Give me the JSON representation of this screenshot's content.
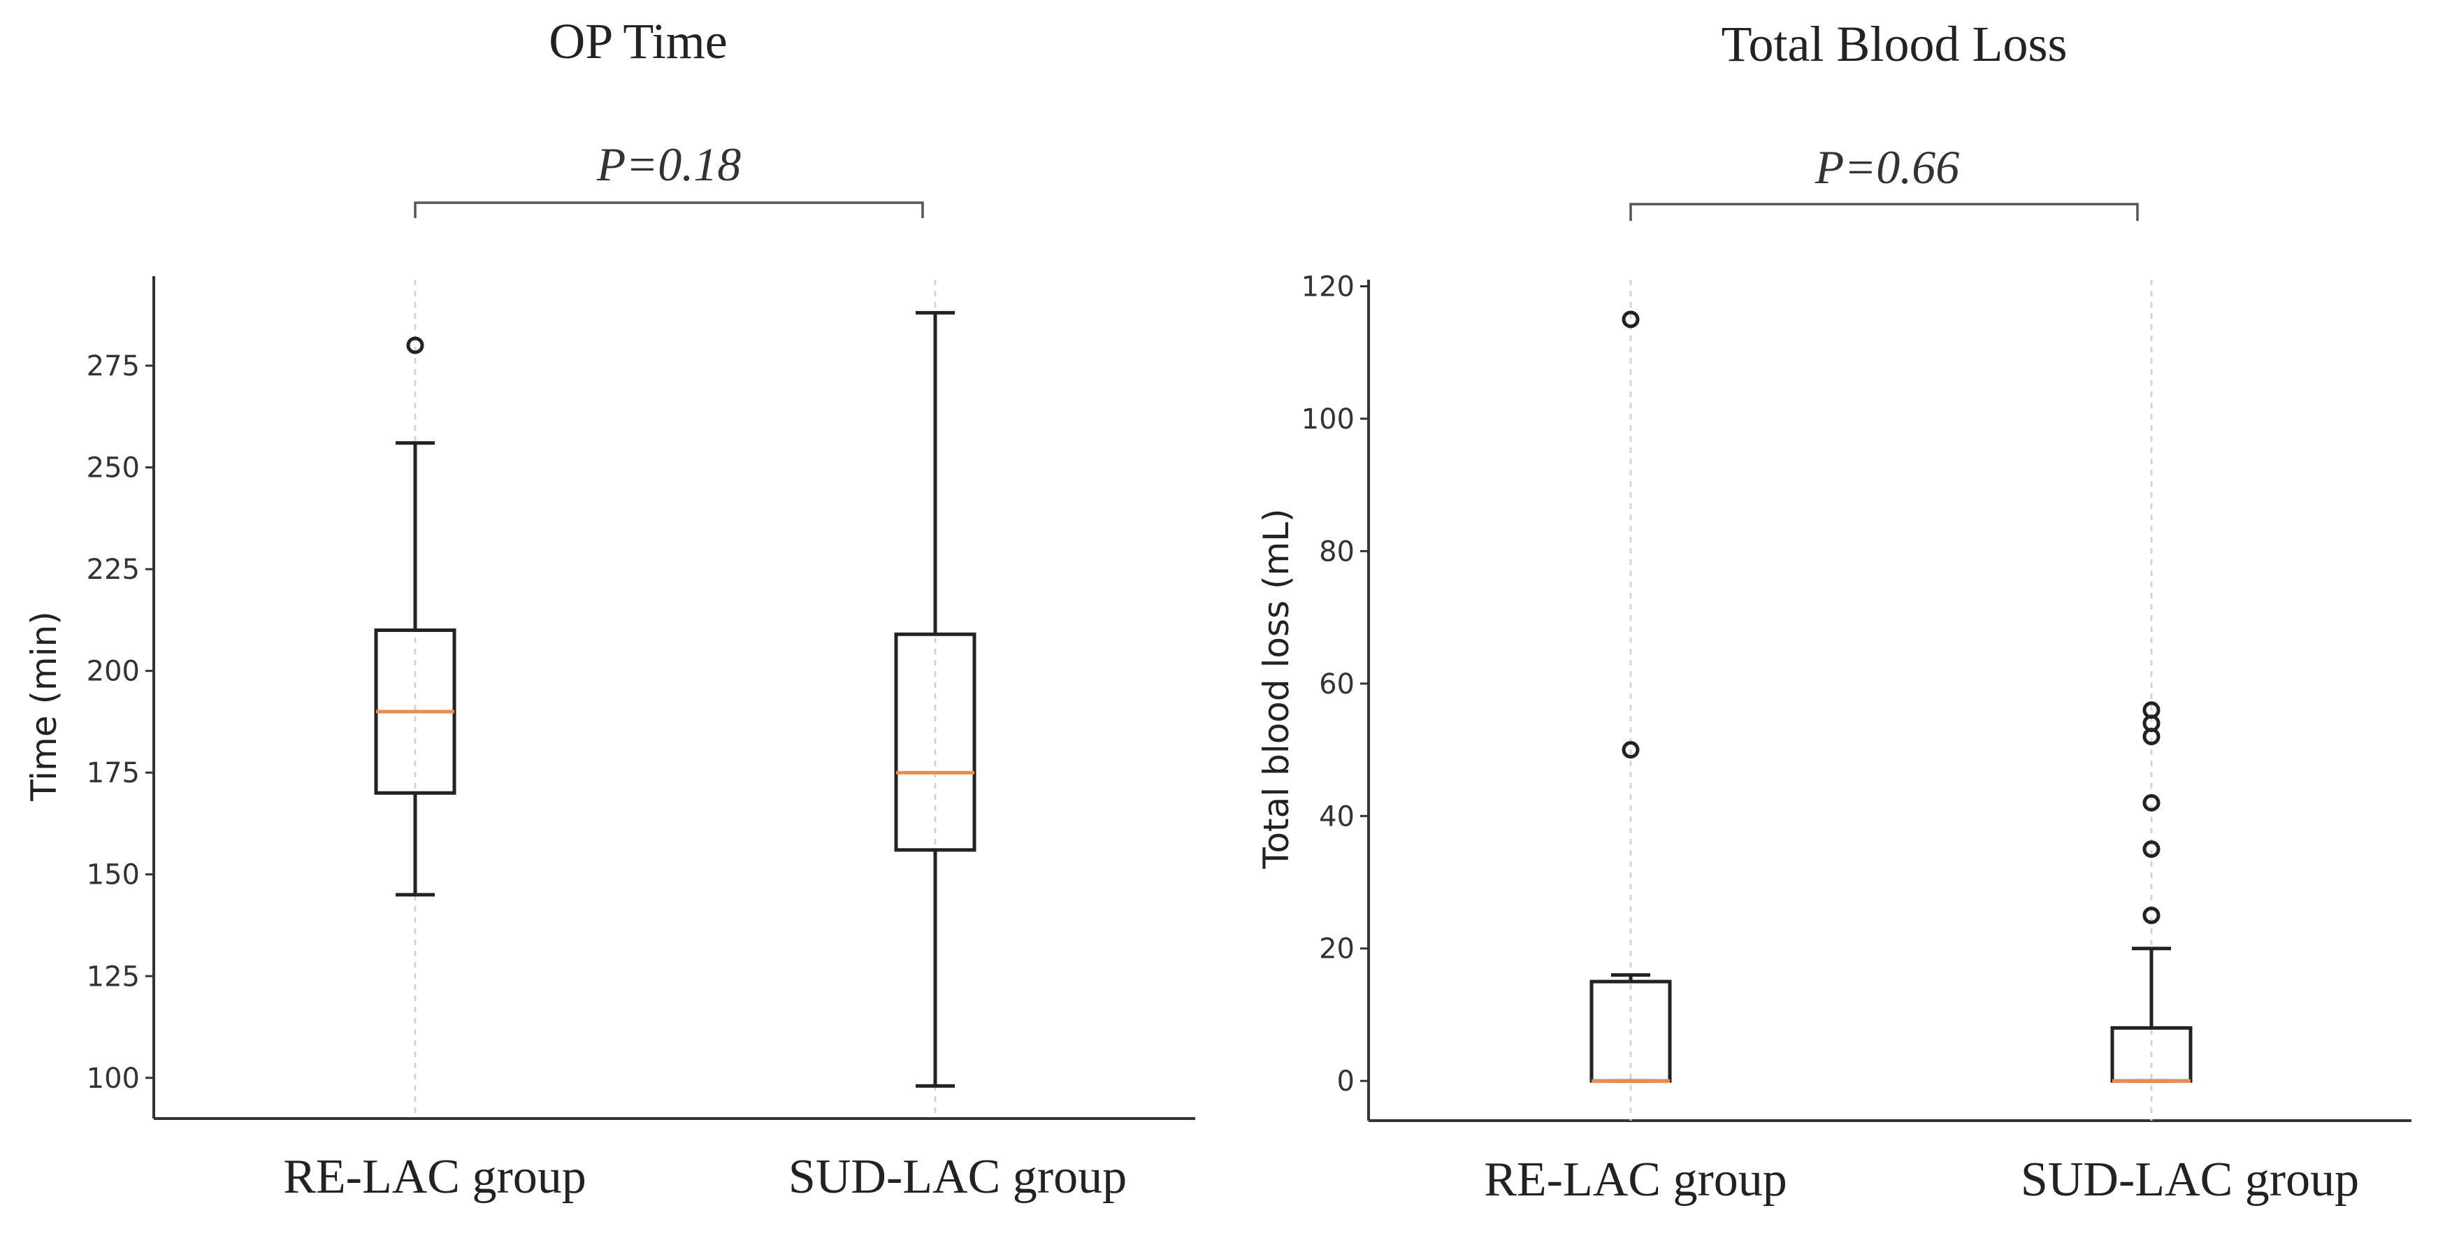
{
  "colors": {
    "median": "#f08a4b",
    "box": "#222222"
  },
  "chart_data": [
    {
      "type": "boxplot",
      "title": "OP Time",
      "xlabel": "",
      "ylabel": "Time (min)",
      "ylim": [
        90,
        297
      ],
      "yticks": [
        100,
        125,
        150,
        175,
        200,
        225,
        250,
        275
      ],
      "categories": [
        "RE-LAC group",
        "SUD-LAC group"
      ],
      "grid": "x",
      "p_value": "P=0.18",
      "boxes": [
        {
          "category": "RE-LAC group",
          "whislo": 145,
          "q1": 170,
          "med": 190,
          "q3": 210,
          "whishi": 256,
          "fliers": [
            280
          ]
        },
        {
          "category": "SUD-LAC group",
          "whislo": 98,
          "q1": 156,
          "med": 175,
          "q3": 209,
          "whishi": 288,
          "fliers": []
        }
      ]
    },
    {
      "type": "boxplot",
      "title": "Total Blood Loss",
      "xlabel": "",
      "ylabel": "Total blood loss (mL)",
      "ylim": [
        -6,
        121
      ],
      "yticks": [
        0,
        20,
        40,
        60,
        80,
        100,
        120
      ],
      "categories": [
        "RE-LAC group",
        "SUD-LAC group"
      ],
      "grid": "x",
      "p_value": "P=0.66",
      "boxes": [
        {
          "category": "RE-LAC group",
          "whislo": 0,
          "q1": 0,
          "med": 0,
          "q3": 15,
          "whishi": 16,
          "fliers": [
            50,
            115
          ]
        },
        {
          "category": "SUD-LAC group",
          "whislo": 0,
          "q1": 0,
          "med": 0,
          "q3": 8,
          "whishi": 20,
          "fliers": [
            25,
            35,
            42,
            52,
            54,
            56
          ]
        }
      ]
    }
  ]
}
